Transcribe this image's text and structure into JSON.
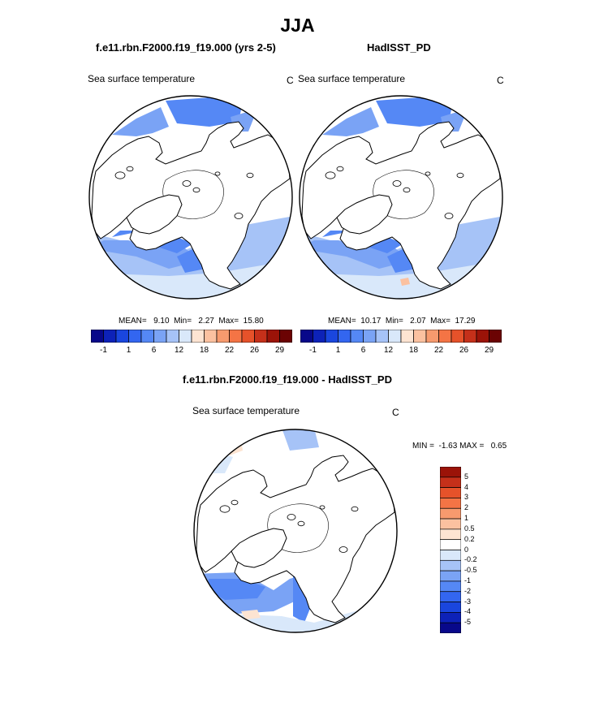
{
  "title": "JJA",
  "panels": [
    {
      "title": "f.e11.rbn.F2000.f19_f19.000 (yrs 2-5)",
      "variable": "Sea surface temperature",
      "units": "C",
      "stats": "MEAN=   9.10  Min=   2.27  Max=  15.80"
    },
    {
      "title": "HadISST_PD",
      "variable": "Sea surface temperature",
      "units": "C",
      "stats": "MEAN=  10.17  Min=   2.07  Max=  17.29"
    },
    {
      "title": "f.e11.rbn.F2000.f19_f19.000 - HadISST_PD",
      "variable": "Sea surface temperature",
      "units": "C",
      "stats": "MIN =  -1.63 MAX =   0.65"
    }
  ],
  "abs_colorbar": {
    "colors": [
      "#08088a",
      "#0d22b8",
      "#1a46de",
      "#3366f0",
      "#5588f5",
      "#7aa3f5",
      "#a6c3f7",
      "#d9e8fa",
      "#fde4d2",
      "#fbc1a0",
      "#f79a6e",
      "#f47445",
      "#e6522a",
      "#c5301a",
      "#9b1308",
      "#6b0303"
    ],
    "tick_labels": [
      "-1",
      "1",
      "6",
      "12",
      "18",
      "22",
      "26",
      "29"
    ]
  },
  "diff_colorbar": {
    "colors": [
      "#08088a",
      "#0d22b8",
      "#1a46de",
      "#3366f0",
      "#5588f5",
      "#7aa3f5",
      "#a6c3f7",
      "#d9e8fa",
      "#ffffff",
      "#fde4d2",
      "#fbc1a0",
      "#f79a6e",
      "#f47445",
      "#e6522a",
      "#c5301a",
      "#9b1308"
    ],
    "tick_labels": [
      "5",
      "4",
      "3",
      "2",
      "1",
      "0.5",
      "0.2",
      "0",
      "-0.2",
      "-0.5",
      "-1",
      "-2",
      "-3",
      "-4",
      "-5"
    ]
  }
}
